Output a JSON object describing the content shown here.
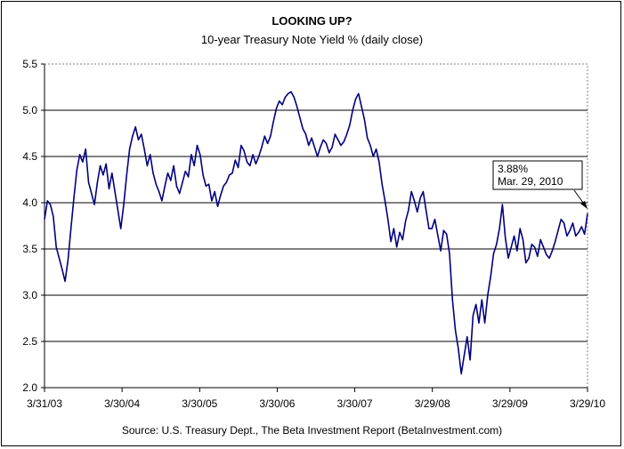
{
  "chart_data": {
    "type": "line",
    "title": "LOOKING UP?",
    "subtitle": "10-year Treasury Note Yield % (daily close)",
    "source": "Source: U.S. Treasury Dept., The Beta Investment Report (BetaInvestment.com)",
    "xlabel": "",
    "ylabel": "",
    "ylim": [
      2.0,
      5.5
    ],
    "yticks": [
      "2.0",
      "2.5",
      "3.0",
      "3.5",
      "4.0",
      "4.5",
      "5.0",
      "5.5"
    ],
    "xticks": [
      "3/31/03",
      "3/30/04",
      "3/30/05",
      "3/30/06",
      "3/30/07",
      "3/29/08",
      "3/29/09",
      "3/29/10"
    ],
    "grid": "horizontal",
    "legend": "none",
    "line_color": "#000080",
    "annotation": {
      "line1": "3.88%",
      "line2": "Mar. 29, 2010"
    },
    "series": [
      {
        "values": [
          3.82,
          4.02,
          3.98,
          3.85,
          3.52,
          3.4,
          3.28,
          3.15,
          3.38,
          3.72,
          4.05,
          4.35,
          4.52,
          4.44,
          4.58,
          4.22,
          4.1,
          3.98,
          4.22,
          4.4,
          4.3,
          4.42,
          4.15,
          4.32,
          4.12,
          3.92,
          3.72,
          3.98,
          4.3,
          4.58,
          4.72,
          4.82,
          4.68,
          4.74,
          4.58,
          4.4,
          4.52,
          4.32,
          4.2,
          4.12,
          4.02,
          4.18,
          4.32,
          4.24,
          4.4,
          4.18,
          4.1,
          4.22,
          4.34,
          4.28,
          4.52,
          4.4,
          4.62,
          4.52,
          4.3,
          4.18,
          4.2,
          4.02,
          4.12,
          3.96,
          4.08,
          4.18,
          4.22,
          4.3,
          4.32,
          4.46,
          4.38,
          4.62,
          4.56,
          4.44,
          4.4,
          4.52,
          4.42,
          4.5,
          4.6,
          4.72,
          4.64,
          4.72,
          4.88,
          5.02,
          5.1,
          5.06,
          5.14,
          5.18,
          5.2,
          5.14,
          5.04,
          4.92,
          4.8,
          4.74,
          4.62,
          4.7,
          4.6,
          4.5,
          4.6,
          4.68,
          4.64,
          4.54,
          4.6,
          4.74,
          4.68,
          4.62,
          4.66,
          4.74,
          4.84,
          5.0,
          5.12,
          5.18,
          5.04,
          4.9,
          4.7,
          4.62,
          4.5,
          4.58,
          4.44,
          4.2,
          4.02,
          3.82,
          3.58,
          3.72,
          3.52,
          3.68,
          3.6,
          3.8,
          3.92,
          4.12,
          4.02,
          3.9,
          4.05,
          4.12,
          3.92,
          3.72,
          3.72,
          3.82,
          3.65,
          3.48,
          3.7,
          3.66,
          3.45,
          2.95,
          2.62,
          2.42,
          2.15,
          2.35,
          2.55,
          2.3,
          2.78,
          2.9,
          2.7,
          2.95,
          2.7,
          3.0,
          3.2,
          3.45,
          3.55,
          3.72,
          3.98,
          3.62,
          3.4,
          3.52,
          3.64,
          3.48,
          3.72,
          3.6,
          3.35,
          3.4,
          3.55,
          3.52,
          3.42,
          3.6,
          3.52,
          3.44,
          3.4,
          3.48,
          3.58,
          3.7,
          3.82,
          3.78,
          3.64,
          3.7,
          3.78,
          3.64,
          3.68,
          3.74,
          3.66,
          3.88
        ]
      }
    ]
  }
}
